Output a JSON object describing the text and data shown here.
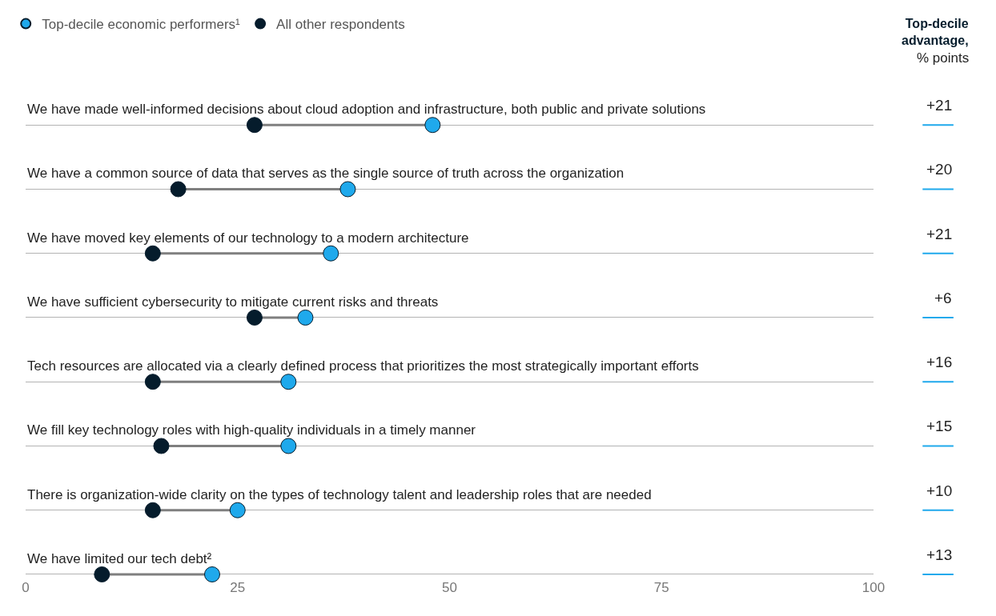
{
  "chart_data": {
    "type": "scatter",
    "orientation": "horizontal",
    "categories": [
      "We have made well-informed decisions about cloud adoption and infrastructure, both public and private solutions",
      "We have a common source of data that serves as the single source of truth across the organization",
      "We have moved key elements of our technology to a modern architecture",
      "We have sufficient cybersecurity to mitigate current risks and threats",
      "Tech resources are allocated via a clearly defined process that prioritizes the most strategically important efforts",
      "We fill key technology roles with high-quality individuals in a timely manner",
      "There is organization-wide clarity on the types of technology talent and leadership roles that are needed",
      "We have limited our tech debt²"
    ],
    "series": [
      {
        "name": "Top-decile economic performers¹",
        "color": "#1fa9ec",
        "values": [
          48,
          38,
          36,
          33,
          31,
          31,
          25,
          22
        ]
      },
      {
        "name": "All other respondents",
        "color": "#051c2c",
        "values": [
          27,
          18,
          15,
          27,
          15,
          16,
          15,
          9
        ]
      }
    ],
    "xlim": [
      0,
      100
    ],
    "xticks": [
      0,
      25,
      50,
      75,
      100
    ],
    "grid": "y",
    "legend": "top left",
    "marker": "circle",
    "annotations": [
      "Top-decile advantage,",
      "% points",
      "+21",
      "+20",
      "+21",
      "+6",
      "+16",
      "+15",
      "+10",
      "+13"
    ]
  }
}
